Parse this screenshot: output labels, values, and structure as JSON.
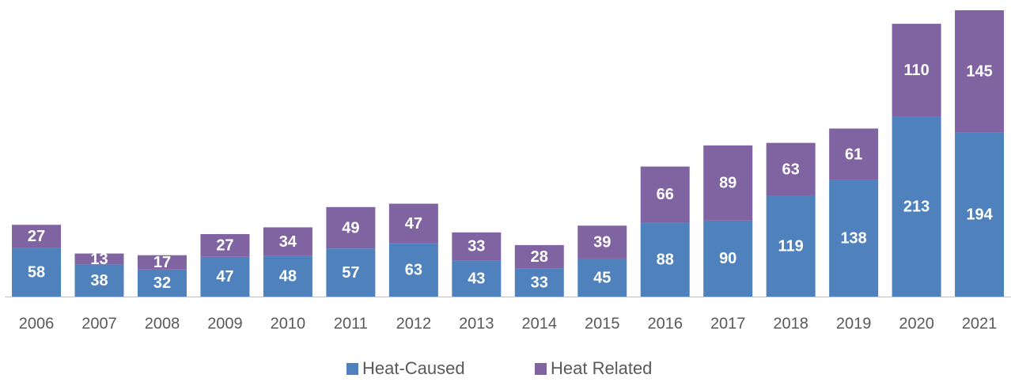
{
  "chart_data": {
    "type": "stacked_bar",
    "categories": [
      "2006",
      "2007",
      "2008",
      "2009",
      "2010",
      "2011",
      "2012",
      "2013",
      "2014",
      "2015",
      "2016",
      "2017",
      "2018",
      "2019",
      "2020",
      "2021"
    ],
    "series": [
      {
        "name": "Heat-Caused",
        "color": "#4f81bd",
        "values": [
          58,
          38,
          32,
          47,
          48,
          57,
          63,
          43,
          33,
          45,
          88,
          90,
          119,
          138,
          213,
          194
        ]
      },
      {
        "name": "Heat Related",
        "color": "#8064a2",
        "values": [
          27,
          13,
          17,
          27,
          34,
          49,
          47,
          33,
          28,
          39,
          66,
          89,
          63,
          61,
          110,
          145
        ]
      }
    ],
    "legend": "bottom"
  }
}
